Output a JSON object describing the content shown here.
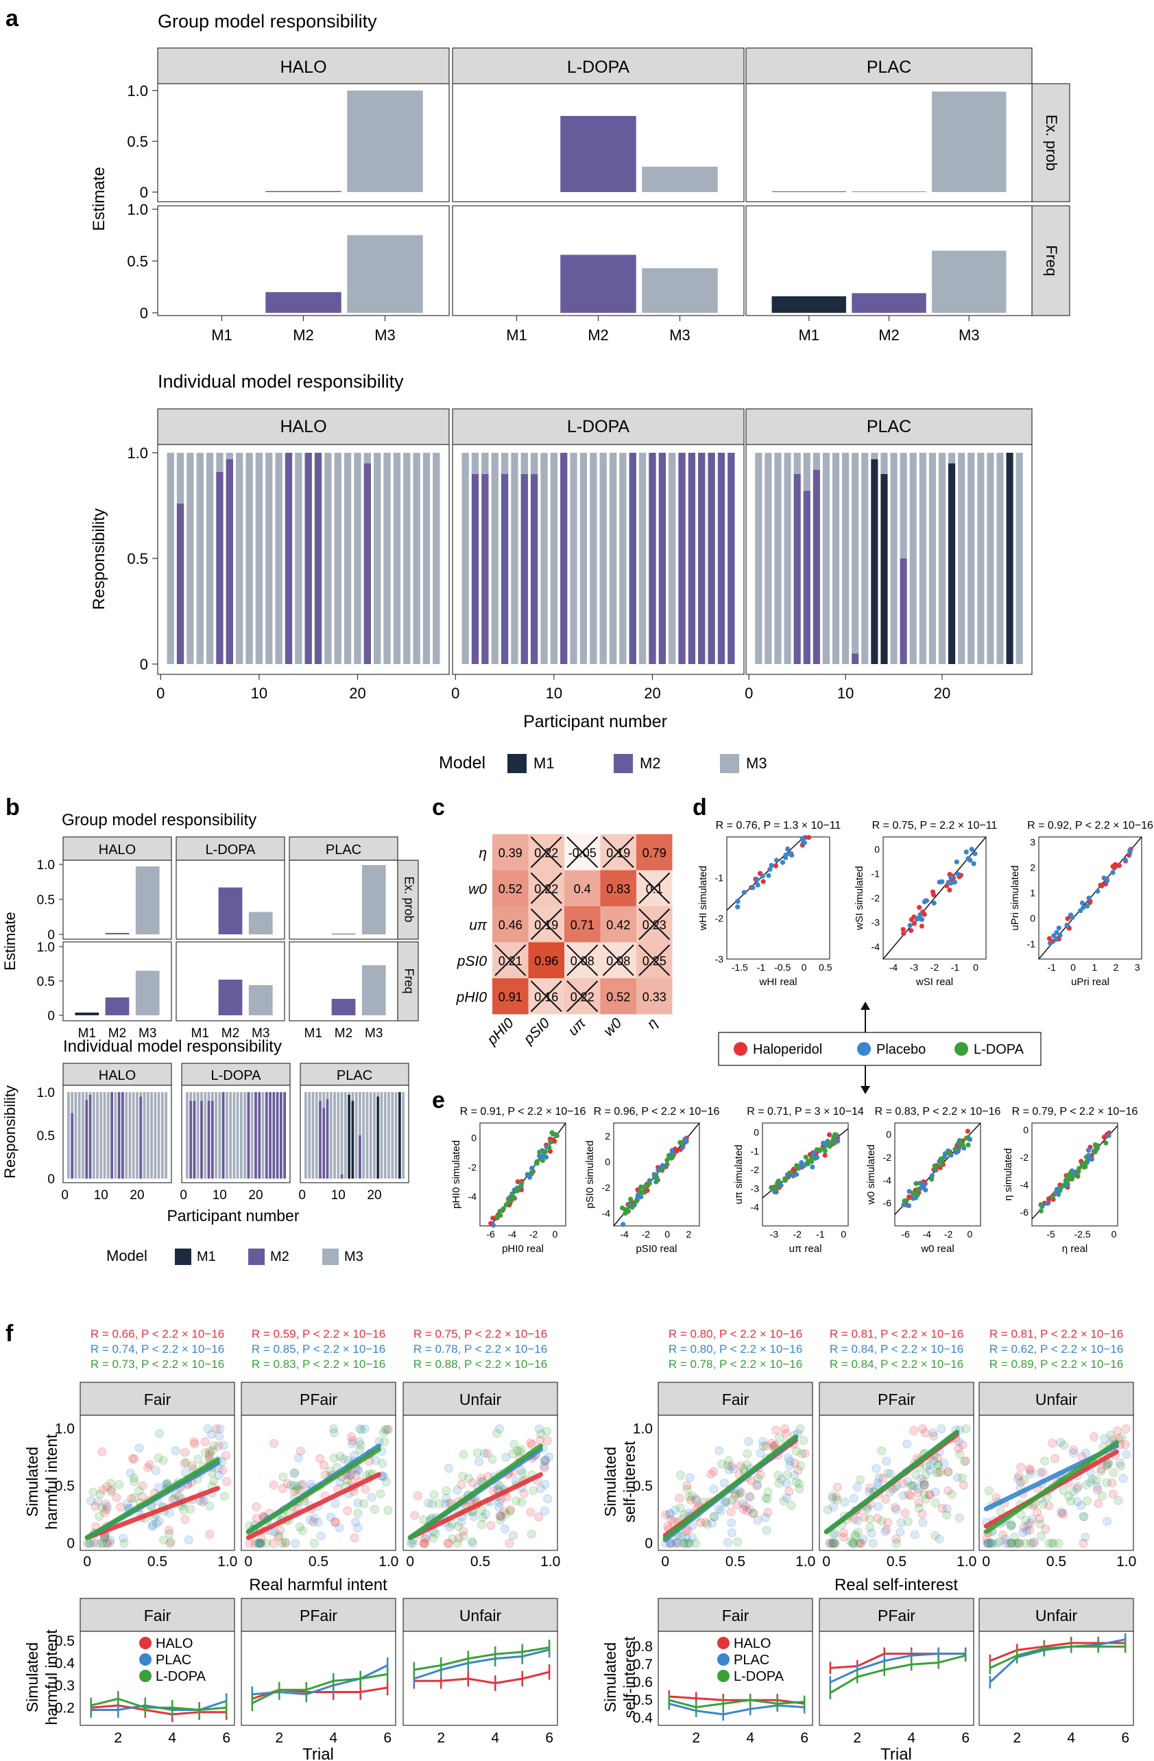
{
  "colors": {
    "M1": "#1c2b3f",
    "M2": "#685b9c",
    "M3": "#a6b0bd",
    "strip": "#d9d9d9",
    "HALO": "#e3333b",
    "PLAC": "#3a85cc",
    "LDOPA": "#3aa03a",
    "heat_hi": "#d9472b",
    "heat_lo": "#fbe3d8"
  },
  "panel_labels": {
    "a": "a",
    "b": "b",
    "c": "c",
    "d": "d",
    "e": "e",
    "f": "f"
  },
  "panel_a": {
    "group_title": "Group model responsibility",
    "indiv_title": "Individual model responsibility",
    "groups": [
      "HALO",
      "L-DOPA",
      "PLAC"
    ],
    "row_labels": [
      "Ex. prob",
      "Freq"
    ],
    "ylabel_group": "Estimate",
    "ylabel_indiv": "Responsibility",
    "xlabel_indiv": "Participant number",
    "models": [
      "M1",
      "M2",
      "M3"
    ],
    "group_yticks": [
      "0",
      "0.5",
      "1.0"
    ],
    "indiv_yticks": [
      "0",
      "0.5",
      "1.0"
    ],
    "indiv_xticks": [
      "0",
      "10",
      "20"
    ],
    "legend_title": "Model"
  },
  "panel_b": {
    "group_title": "Group model responsibility",
    "indiv_title": "Individual model responsibility",
    "ylabel_group": "Estimate",
    "ylabel_indiv": "Responsibility",
    "xlabel_indiv": "Participant number",
    "legend_title": "Model"
  },
  "panel_c": {
    "rows": [
      "η",
      "w0",
      "uπ",
      "pSI0",
      "pHI0"
    ],
    "cols": [
      "pHI0",
      "pSI0",
      "uπ",
      "w0",
      "η"
    ]
  },
  "panel_d": {
    "legend": [
      "Haloperidol",
      "Placebo",
      "L-DOPA"
    ],
    "plots": [
      {
        "stat": "R = 0.76, P = 1.3 × 10−11",
        "xlabel": "wHI real",
        "ylabel": "wHI simulated"
      },
      {
        "stat": "R = 0.75, P = 2.2 × 10−11",
        "xlabel": "wSI real",
        "ylabel": "wSI simulated"
      },
      {
        "stat": "R = 0.92, P < 2.2 × 10−16",
        "xlabel": "uPri real",
        "ylabel": "uPri simulated"
      }
    ]
  },
  "panel_e": {
    "plots": [
      {
        "stat": "R = 0.91, P < 2.2 × 10−16",
        "xlabel": "pHI0 real",
        "ylabel": "pHI0 simulated"
      },
      {
        "stat": "R = 0.96, P < 2.2 × 10−16",
        "xlabel": "pSI0 real",
        "ylabel": "pSI0 simulated"
      },
      {
        "stat": "R = 0.71, P = 3 × 10−14",
        "xlabel": "uπ real",
        "ylabel": "uπ simulated"
      },
      {
        "stat": "R = 0.83, P < 2.2 × 10−16",
        "xlabel": "w0 real",
        "ylabel": "w0 simulated"
      },
      {
        "stat": "R = 0.79, P < 2.2 × 10−16",
        "xlabel": "η real",
        "ylabel": "η simulated"
      }
    ]
  },
  "panel_f": {
    "conditions": [
      "Fair",
      "PFair",
      "Unfair"
    ],
    "left_xlabel": "Real harmful intent",
    "left_ylabel": "Simulated harmful intent",
    "right_xlabel": "Real self-interest",
    "right_ylabel": "Simulated self-interest",
    "trial_xlabel": "Trial",
    "trial_left_ylabel": "Simulated harmful intent",
    "trial_right_ylabel": "Simulated self-interest",
    "trial_legend": [
      "HALO",
      "PLAC",
      "L-DOPA"
    ],
    "left_stats": [
      [
        "R = 0.66, P < 2.2 × 10−16",
        "R = 0.74, P < 2.2 × 10−16",
        "R = 0.73, P < 2.2 × 10−16"
      ],
      [
        "R = 0.59, P < 2.2 × 10−16",
        "R = 0.85, P < 2.2 × 10−16",
        "R = 0.83, P < 2.2 × 10−16"
      ],
      [
        "R = 0.75, P < 2.2 × 10−16",
        "R = 0.78, P < 2.2 × 10−16",
        "R = 0.88, P < 2.2 × 10−16"
      ]
    ],
    "right_stats": [
      [
        "R = 0.80, P < 2.2 × 10−16",
        "R = 0.80, P < 2.2 × 10−16",
        "R = 0.78, P < 2.2 × 10−16"
      ],
      [
        "R = 0.81, P < 2.2 × 10−16",
        "R = 0.84, P < 2.2 × 10−16",
        "R = 0.84, P < 2.2 × 10−16"
      ],
      [
        "R = 0.81, P < 2.2 × 10−16",
        "R = 0.62, P < 2.2 × 10−16",
        "R = 0.89, P < 2.2 × 10−16"
      ]
    ]
  },
  "chart_data": [
    {
      "id": "a_group",
      "type": "bar",
      "title": "Group model responsibility",
      "ylabel": "Estimate",
      "categories": [
        "M1",
        "M2",
        "M3"
      ],
      "ylim": [
        0,
        1
      ],
      "series": [
        {
          "name": "HALO Ex. prob",
          "values": [
            0,
            0.01,
            1.0
          ]
        },
        {
          "name": "L-DOPA Ex. prob",
          "values": [
            0,
            0.75,
            0.25
          ]
        },
        {
          "name": "PLAC Ex. prob",
          "values": [
            0.005,
            0.005,
            0.99
          ]
        },
        {
          "name": "HALO Freq",
          "values": [
            0,
            0.2,
            0.75
          ]
        },
        {
          "name": "L-DOPA Freq",
          "values": [
            0,
            0.56,
            0.43
          ]
        },
        {
          "name": "PLAC Freq",
          "values": [
            0.16,
            0.19,
            0.6
          ]
        }
      ]
    },
    {
      "id": "a_indiv",
      "type": "bar",
      "title": "Individual model responsibility",
      "ylabel": "Responsibility",
      "xlabel": "Participant number",
      "xlim": [
        0,
        28
      ],
      "ylim": [
        0,
        1
      ],
      "series": [
        {
          "name": "HALO",
          "m1": [
            0,
            0,
            0,
            0,
            0,
            0,
            0,
            0,
            0,
            0,
            0,
            0,
            0,
            0,
            0,
            0,
            0,
            0,
            0,
            0,
            0,
            0,
            0,
            0,
            0,
            0,
            0,
            0
          ],
          "m2": [
            0,
            0.76,
            0,
            0,
            0,
            0.91,
            0.97,
            0,
            0,
            0,
            0,
            0,
            1,
            0,
            1,
            1,
            0,
            0,
            0,
            0,
            0.95,
            0,
            0,
            0,
            0,
            0,
            0,
            0
          ]
        },
        {
          "name": "L-DOPA",
          "m1": [
            0,
            0,
            0,
            0,
            0,
            0,
            0,
            0,
            0,
            0,
            0,
            0,
            0,
            0,
            0,
            0,
            0,
            0,
            0,
            0,
            0,
            0,
            0,
            0,
            0,
            0,
            0,
            0
          ],
          "m2": [
            0,
            0.9,
            0.9,
            0,
            0.9,
            0,
            0.9,
            0.9,
            0,
            0,
            1,
            0,
            0,
            0,
            0,
            0,
            0,
            1,
            0,
            1,
            1,
            0,
            1,
            1,
            1,
            1,
            1,
            1
          ]
        },
        {
          "name": "PLAC",
          "m1": [
            0,
            0,
            0,
            0,
            0,
            0,
            0,
            0,
            0,
            0,
            0,
            0,
            0.97,
            0.9,
            0,
            0,
            0,
            0,
            0,
            0,
            0.95,
            0,
            0,
            0,
            0,
            0,
            1,
            0
          ],
          "m2": [
            0,
            0,
            0,
            0,
            0.9,
            0.82,
            0.92,
            0,
            0,
            0,
            0.05,
            0,
            0,
            0,
            0,
            0.5,
            0,
            0,
            0,
            0,
            0,
            0,
            0,
            0,
            0,
            0,
            0,
            0
          ]
        }
      ]
    },
    {
      "id": "b_group",
      "type": "bar",
      "title": "Group model responsibility",
      "ylabel": "Estimate",
      "categories": [
        "M1",
        "M2",
        "M3"
      ],
      "ylim": [
        0,
        1
      ],
      "series": [
        {
          "name": "HALO Ex. prob",
          "values": [
            0,
            0.02,
            0.97
          ]
        },
        {
          "name": "L-DOPA Ex. prob",
          "values": [
            0,
            0.67,
            0.32
          ]
        },
        {
          "name": "PLAC Ex. prob",
          "values": [
            0,
            0.01,
            0.99
          ]
        },
        {
          "name": "HALO Freq",
          "values": [
            0.04,
            0.26,
            0.65
          ]
        },
        {
          "name": "L-DOPA Freq",
          "values": [
            0,
            0.52,
            0.44
          ]
        },
        {
          "name": "PLAC Freq",
          "values": [
            0,
            0.24,
            0.73
          ]
        }
      ]
    },
    {
      "id": "c",
      "type": "heatmap",
      "rows": [
        "η",
        "w0",
        "uπ",
        "pSI0",
        "pHI0"
      ],
      "cols": [
        "pHI0",
        "pSI0",
        "uπ",
        "w0",
        "η"
      ],
      "values": [
        [
          0.39,
          0.22,
          -0.05,
          0.19,
          0.79
        ],
        [
          0.52,
          0.22,
          0.4,
          0.83,
          0.1
        ],
        [
          0.46,
          0.19,
          0.71,
          0.42,
          0.23
        ],
        [
          0.21,
          0.96,
          0.08,
          0.08,
          0.25
        ],
        [
          0.91,
          0.16,
          0.22,
          0.52,
          0.33
        ]
      ],
      "crossed": [
        [
          false,
          true,
          true,
          true,
          false
        ],
        [
          false,
          true,
          false,
          false,
          true
        ],
        [
          false,
          true,
          false,
          false,
          true
        ],
        [
          true,
          false,
          true,
          true,
          true
        ],
        [
          false,
          true,
          true,
          false,
          false
        ]
      ]
    },
    {
      "id": "d",
      "type": "scatter",
      "series": [
        {
          "name": "wHI",
          "r": 0.76,
          "xlim": [
            -1.8,
            0.6
          ],
          "ylim": [
            -3,
            0
          ],
          "xticks": [
            -1.5,
            -1.0,
            -0.5,
            0,
            0.5
          ],
          "yticks": [
            -3,
            -2,
            -1
          ]
        },
        {
          "name": "wSI",
          "r": 0.75,
          "xlim": [
            -4.5,
            0.5
          ],
          "ylim": [
            -4.5,
            0.5
          ],
          "xticks": [
            -4,
            -3,
            -2,
            -1,
            0
          ],
          "yticks": [
            -4,
            -3,
            -2,
            -1,
            0
          ]
        },
        {
          "name": "uPri",
          "r": 0.92,
          "xlim": [
            -1.6,
            3.2
          ],
          "ylim": [
            -1.6,
            3.2
          ],
          "xticks": [
            -1,
            0,
            1,
            2,
            3
          ],
          "yticks": [
            -1,
            0,
            1,
            2,
            3
          ]
        }
      ]
    },
    {
      "id": "e",
      "type": "scatter",
      "series": [
        {
          "name": "pHI0",
          "r": 0.91,
          "xlim": [
            -7,
            1
          ],
          "ylim": [
            -6,
            1
          ],
          "xticks": [
            -6,
            -4,
            -2,
            0
          ],
          "yticks": [
            -4,
            -2,
            0
          ]
        },
        {
          "name": "pSI0",
          "r": 0.96,
          "xlim": [
            -5,
            3
          ],
          "ylim": [
            -5,
            3
          ],
          "xticks": [
            -4,
            -2,
            0,
            2
          ],
          "yticks": [
            -4,
            -2,
            0,
            2
          ]
        },
        {
          "name": "uπ",
          "r": 0.71,
          "xlim": [
            -3.5,
            0.2
          ],
          "ylim": [
            -5,
            0.5
          ],
          "xticks": [
            -3,
            -2,
            -1,
            0
          ],
          "yticks": [
            -4,
            -3,
            -2,
            -1,
            0
          ]
        },
        {
          "name": "w0",
          "r": 0.83,
          "xlim": [
            -7,
            1
          ],
          "ylim": [
            -8,
            1
          ],
          "xticks": [
            -6,
            -4,
            -2,
            0
          ],
          "yticks": [
            -6,
            -4,
            -2,
            0
          ]
        },
        {
          "name": "η",
          "r": 0.79,
          "xlim": [
            -6.5,
            0.3
          ],
          "ylim": [
            -7,
            0.5
          ],
          "xticks": [
            -5.0,
            -2.5,
            0.0
          ],
          "yticks": [
            -6,
            -4,
            -2,
            0
          ]
        }
      ]
    },
    {
      "id": "f_scatter",
      "type": "scatter",
      "xlim": [
        0,
        1
      ],
      "ylim": [
        0,
        1
      ],
      "fits": {
        "harm": [
          [
            [
              0.05,
              0.48
            ],
            [
              0.05,
              0.7
            ],
            [
              0.05,
              0.73
            ]
          ],
          [
            [
              0.05,
              0.6
            ],
            [
              0.1,
              0.85
            ],
            [
              0.1,
              0.82
            ]
          ],
          [
            [
              0.05,
              0.6
            ],
            [
              0.05,
              0.82
            ],
            [
              0.05,
              0.85
            ]
          ]
        ],
        "self": [
          [
            [
              0.07,
              0.9
            ],
            [
              0.03,
              0.92
            ],
            [
              0.05,
              0.93
            ]
          ],
          [
            [
              0.1,
              0.95
            ],
            [
              0.1,
              0.97
            ],
            [
              0.1,
              0.97
            ]
          ],
          [
            [
              0.15,
              0.8
            ],
            [
              0.3,
              0.85
            ],
            [
              0.1,
              0.88
            ]
          ]
        ]
      }
    },
    {
      "id": "f_trial",
      "type": "line",
      "x": [
        1,
        2,
        3,
        4,
        5,
        6
      ],
      "harm": {
        "Fair": {
          "HALO": [
            0.2,
            0.21,
            0.19,
            0.17,
            0.18,
            0.18
          ],
          "PLAC": [
            0.19,
            0.19,
            0.21,
            0.19,
            0.19,
            0.23
          ],
          "LDOPA": [
            0.21,
            0.24,
            0.2,
            0.2,
            0.19,
            0.2
          ]
        },
        "PFair": {
          "HALO": [
            0.24,
            0.28,
            0.27,
            0.27,
            0.27,
            0.29
          ],
          "PLAC": [
            0.26,
            0.27,
            0.26,
            0.3,
            0.33,
            0.39
          ],
          "LDOPA": [
            0.22,
            0.28,
            0.28,
            0.32,
            0.33,
            0.35
          ]
        },
        "Unfair": {
          "HALO": [
            0.32,
            0.32,
            0.33,
            0.31,
            0.33,
            0.36
          ],
          "PLAC": [
            0.33,
            0.37,
            0.4,
            0.42,
            0.43,
            0.46
          ],
          "LDOPA": [
            0.37,
            0.39,
            0.42,
            0.44,
            0.45,
            0.47
          ]
        }
      },
      "self": {
        "Fair": {
          "HALO": [
            0.52,
            0.51,
            0.5,
            0.5,
            0.5,
            0.48
          ],
          "PLAC": [
            0.48,
            0.44,
            0.42,
            0.45,
            0.47,
            0.46
          ],
          "LDOPA": [
            0.5,
            0.46,
            0.48,
            0.5,
            0.48,
            0.49
          ]
        },
        "PFair": {
          "HALO": [
            0.68,
            0.69,
            0.76,
            0.76,
            0.76,
            0.76
          ],
          "PLAC": [
            0.6,
            0.67,
            0.72,
            0.75,
            0.76,
            0.76
          ],
          "LDOPA": [
            0.54,
            0.63,
            0.67,
            0.7,
            0.71,
            0.75
          ]
        },
        "Unfair": {
          "HALO": [
            0.72,
            0.78,
            0.8,
            0.82,
            0.82,
            0.82
          ],
          "PLAC": [
            0.6,
            0.74,
            0.78,
            0.8,
            0.81,
            0.84
          ],
          "LDOPA": [
            0.68,
            0.75,
            0.79,
            0.8,
            0.8,
            0.8
          ]
        }
      }
    }
  ]
}
